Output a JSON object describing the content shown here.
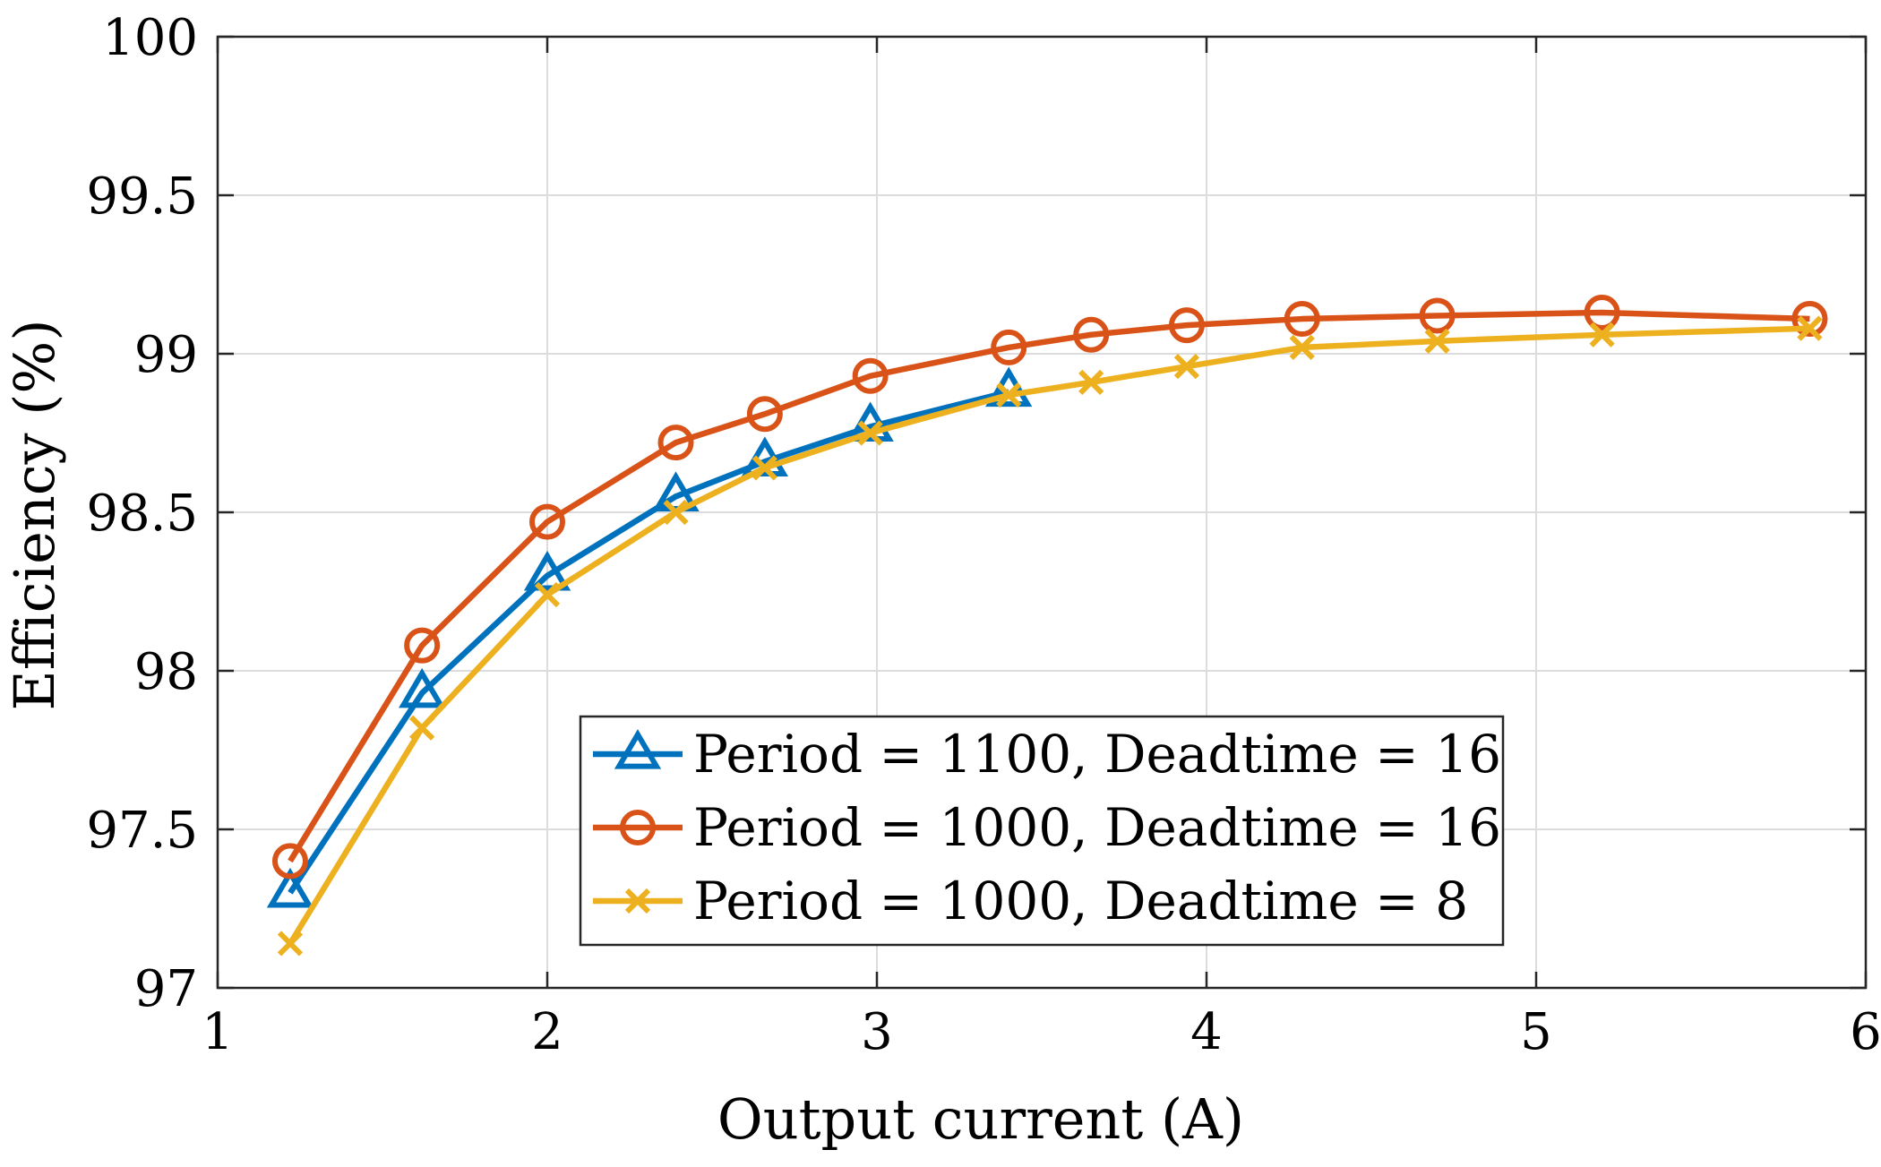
{
  "chart_data": {
    "type": "line",
    "xlabel": "Output current (A)",
    "ylabel": "Efficiency (%)",
    "xlim": [
      1,
      6
    ],
    "ylim": [
      97,
      100
    ],
    "x_ticks": [
      1,
      2,
      3,
      4,
      5,
      6
    ],
    "y_ticks": [
      97,
      97.5,
      98,
      98.5,
      99,
      99.5,
      100
    ],
    "x_tick_labels": [
      "1",
      "2",
      "3",
      "4",
      "5",
      "6"
    ],
    "y_tick_labels": [
      "97",
      "97.5",
      "98",
      "98.5",
      "99",
      "99.5",
      "100"
    ],
    "grid": true,
    "legend_position": "bottom-center",
    "series": [
      {
        "name": "Period = 1100, Deadtime = 16",
        "color": "#0072BD",
        "marker": "triangle",
        "x": [
          1.22,
          1.62,
          2.0,
          2.39,
          2.66,
          2.98,
          3.4
        ],
        "y": [
          97.3,
          97.93,
          98.3,
          98.55,
          98.66,
          98.77,
          98.88
        ]
      },
      {
        "name": "Period = 1000, Deadtime = 16",
        "color": "#D95319",
        "marker": "circle",
        "x": [
          1.22,
          1.62,
          2.0,
          2.39,
          2.66,
          2.98,
          3.4,
          3.65,
          3.94,
          4.29,
          4.7,
          5.2,
          5.83
        ],
        "y": [
          97.4,
          98.08,
          98.47,
          98.72,
          98.81,
          98.93,
          99.02,
          99.06,
          99.09,
          99.11,
          99.12,
          99.13,
          99.11
        ]
      },
      {
        "name": "Period = 1000, Deadtime = 8",
        "color": "#EDB120",
        "marker": "x",
        "x": [
          1.22,
          1.62,
          2.0,
          2.39,
          2.66,
          2.98,
          3.4,
          3.65,
          3.94,
          4.29,
          4.7,
          5.2,
          5.83
        ],
        "y": [
          97.14,
          97.82,
          98.24,
          98.5,
          98.64,
          98.75,
          98.87,
          98.91,
          98.96,
          99.02,
          99.04,
          99.06,
          99.08
        ]
      }
    ]
  }
}
